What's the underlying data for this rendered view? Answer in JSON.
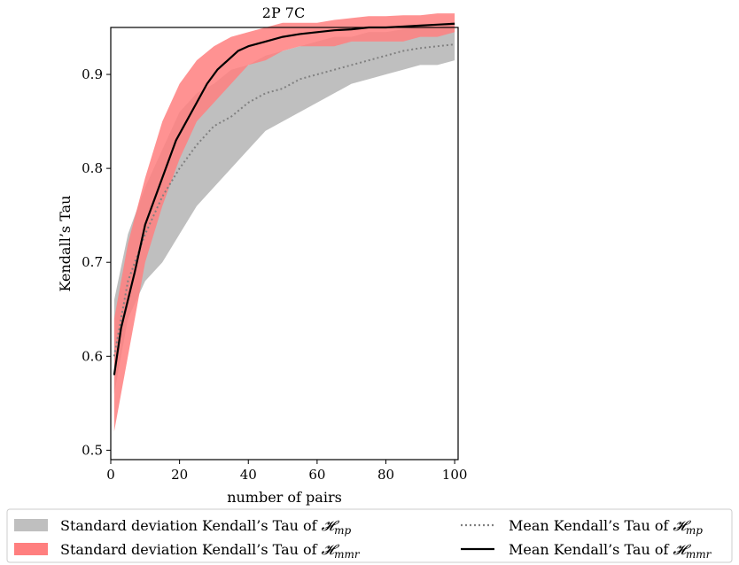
{
  "chart_data": {
    "type": "line",
    "title": "2P 7C",
    "xlabel": "number of pairs",
    "ylabel": "Kendall’s Tau",
    "xlim": [
      0,
      101
    ],
    "ylim": [
      0.49,
      0.95
    ],
    "xticks": [
      0,
      20,
      40,
      60,
      80,
      100
    ],
    "yticks": [
      0.5,
      0.6,
      0.7,
      0.8,
      0.9
    ],
    "grid": false,
    "legend_position": "bottom",
    "series": [
      {
        "name": "Standard deviation Kendall’s Tau of 𝓗mp",
        "kind": "band",
        "color": "#bfbfbf",
        "x": [
          1,
          5,
          10,
          15,
          20,
          25,
          30,
          35,
          40,
          45,
          50,
          55,
          60,
          65,
          70,
          75,
          80,
          85,
          90,
          95,
          100
        ],
        "lower": [
          0.56,
          0.64,
          0.68,
          0.7,
          0.73,
          0.76,
          0.78,
          0.8,
          0.82,
          0.84,
          0.85,
          0.86,
          0.87,
          0.88,
          0.89,
          0.895,
          0.9,
          0.905,
          0.91,
          0.91,
          0.915
        ],
        "upper": [
          0.66,
          0.73,
          0.78,
          0.82,
          0.86,
          0.88,
          0.89,
          0.905,
          0.91,
          0.92,
          0.925,
          0.93,
          0.935,
          0.94,
          0.94,
          0.945,
          0.945,
          0.948,
          0.95,
          0.95,
          0.955
        ]
      },
      {
        "name": "Standard deviation Kendall’s Tau of 𝓗mmr",
        "kind": "band",
        "color": "#ff7f7f",
        "x": [
          1,
          5,
          10,
          15,
          20,
          25,
          30,
          35,
          40,
          45,
          50,
          55,
          60,
          65,
          70,
          75,
          80,
          85,
          90,
          95,
          100
        ],
        "lower": [
          0.52,
          0.6,
          0.7,
          0.76,
          0.81,
          0.85,
          0.87,
          0.89,
          0.91,
          0.915,
          0.925,
          0.93,
          0.93,
          0.93,
          0.935,
          0.935,
          0.935,
          0.935,
          0.94,
          0.94,
          0.945
        ],
        "upper": [
          0.64,
          0.72,
          0.79,
          0.85,
          0.89,
          0.915,
          0.93,
          0.94,
          0.945,
          0.95,
          0.955,
          0.955,
          0.955,
          0.958,
          0.96,
          0.962,
          0.962,
          0.963,
          0.963,
          0.965,
          0.965
        ]
      },
      {
        "name": "Mean Kendall’s Tau of 𝓗mp",
        "kind": "line",
        "style": "dotted",
        "color": "#808080",
        "x": [
          1,
          5,
          10,
          15,
          20,
          25,
          30,
          35,
          40,
          45,
          50,
          55,
          60,
          65,
          70,
          75,
          80,
          85,
          90,
          95,
          100
        ],
        "y": [
          0.6,
          0.68,
          0.73,
          0.77,
          0.8,
          0.825,
          0.845,
          0.855,
          0.87,
          0.88,
          0.885,
          0.895,
          0.9,
          0.905,
          0.91,
          0.915,
          0.92,
          0.925,
          0.928,
          0.93,
          0.932
        ]
      },
      {
        "name": "Mean Kendall’s Tau of 𝓗mmr",
        "kind": "line",
        "style": "solid",
        "color": "#000000",
        "x": [
          1,
          3,
          5,
          7,
          10,
          13,
          16,
          19,
          22,
          25,
          28,
          31,
          34,
          37,
          40,
          45,
          50,
          55,
          60,
          65,
          70,
          75,
          80,
          85,
          90,
          95,
          100
        ],
        "y": [
          0.58,
          0.63,
          0.66,
          0.69,
          0.74,
          0.77,
          0.8,
          0.83,
          0.85,
          0.87,
          0.89,
          0.905,
          0.915,
          0.925,
          0.93,
          0.935,
          0.94,
          0.943,
          0.945,
          0.947,
          0.948,
          0.95,
          0.95,
          0.951,
          0.952,
          0.953,
          0.954
        ]
      }
    ]
  },
  "legend": {
    "items": [
      {
        "key": "sd_mp",
        "prefix": "Standard deviation Kendall’s Tau of ",
        "sub": "mp"
      },
      {
        "key": "mean_mp",
        "prefix": "Mean Kendall’s Tau of ",
        "sub": "mp"
      },
      {
        "key": "sd_mmr",
        "prefix": "Standard deviation Kendall’s Tau of ",
        "sub": "mmr"
      },
      {
        "key": "mean_mmr",
        "prefix": "Mean Kendall’s Tau of ",
        "sub": "mmr"
      }
    ],
    "script_h": "𝓗"
  }
}
